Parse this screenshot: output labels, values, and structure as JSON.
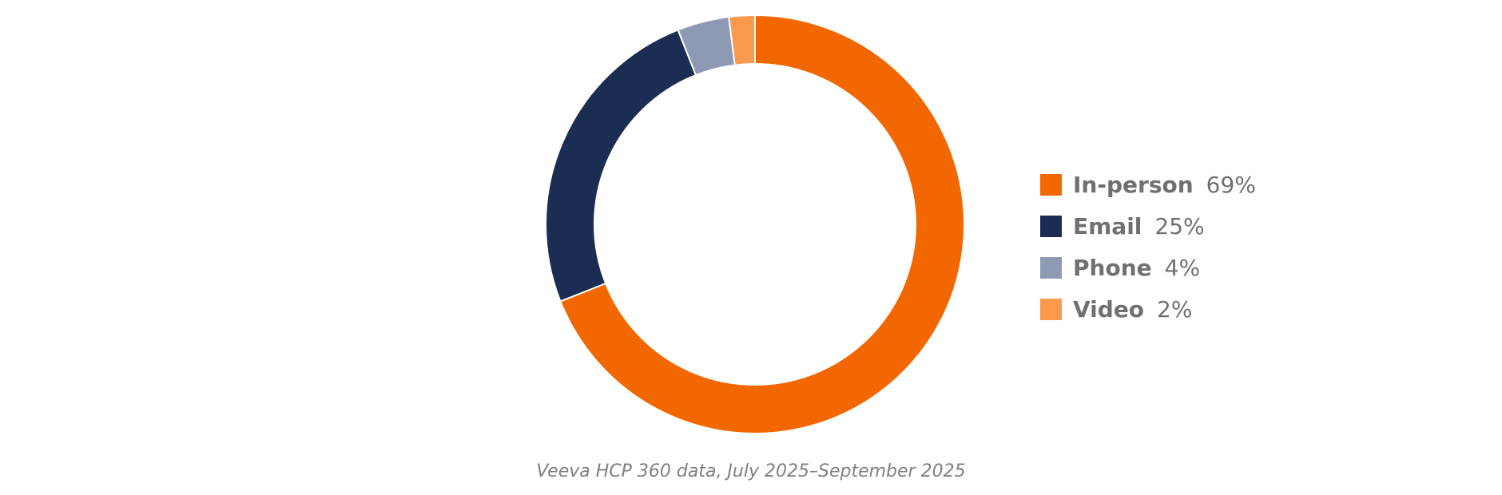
{
  "chart_data": {
    "type": "pie",
    "donut": true,
    "categories": [
      "In-person",
      "Email",
      "Phone",
      "Video"
    ],
    "values": [
      69,
      25,
      4,
      2
    ],
    "value_labels": [
      "69%",
      "25%",
      "4%",
      "2%"
    ],
    "unit": "%",
    "colors": [
      "#F26700",
      "#1B2D53",
      "#8E9AB4",
      "#F99A4F"
    ],
    "legend_position": "right",
    "start_angle": "top, clockwise",
    "title": "",
    "source_note": "Veeva HCP 360 data, July 2025–September 2025"
  }
}
